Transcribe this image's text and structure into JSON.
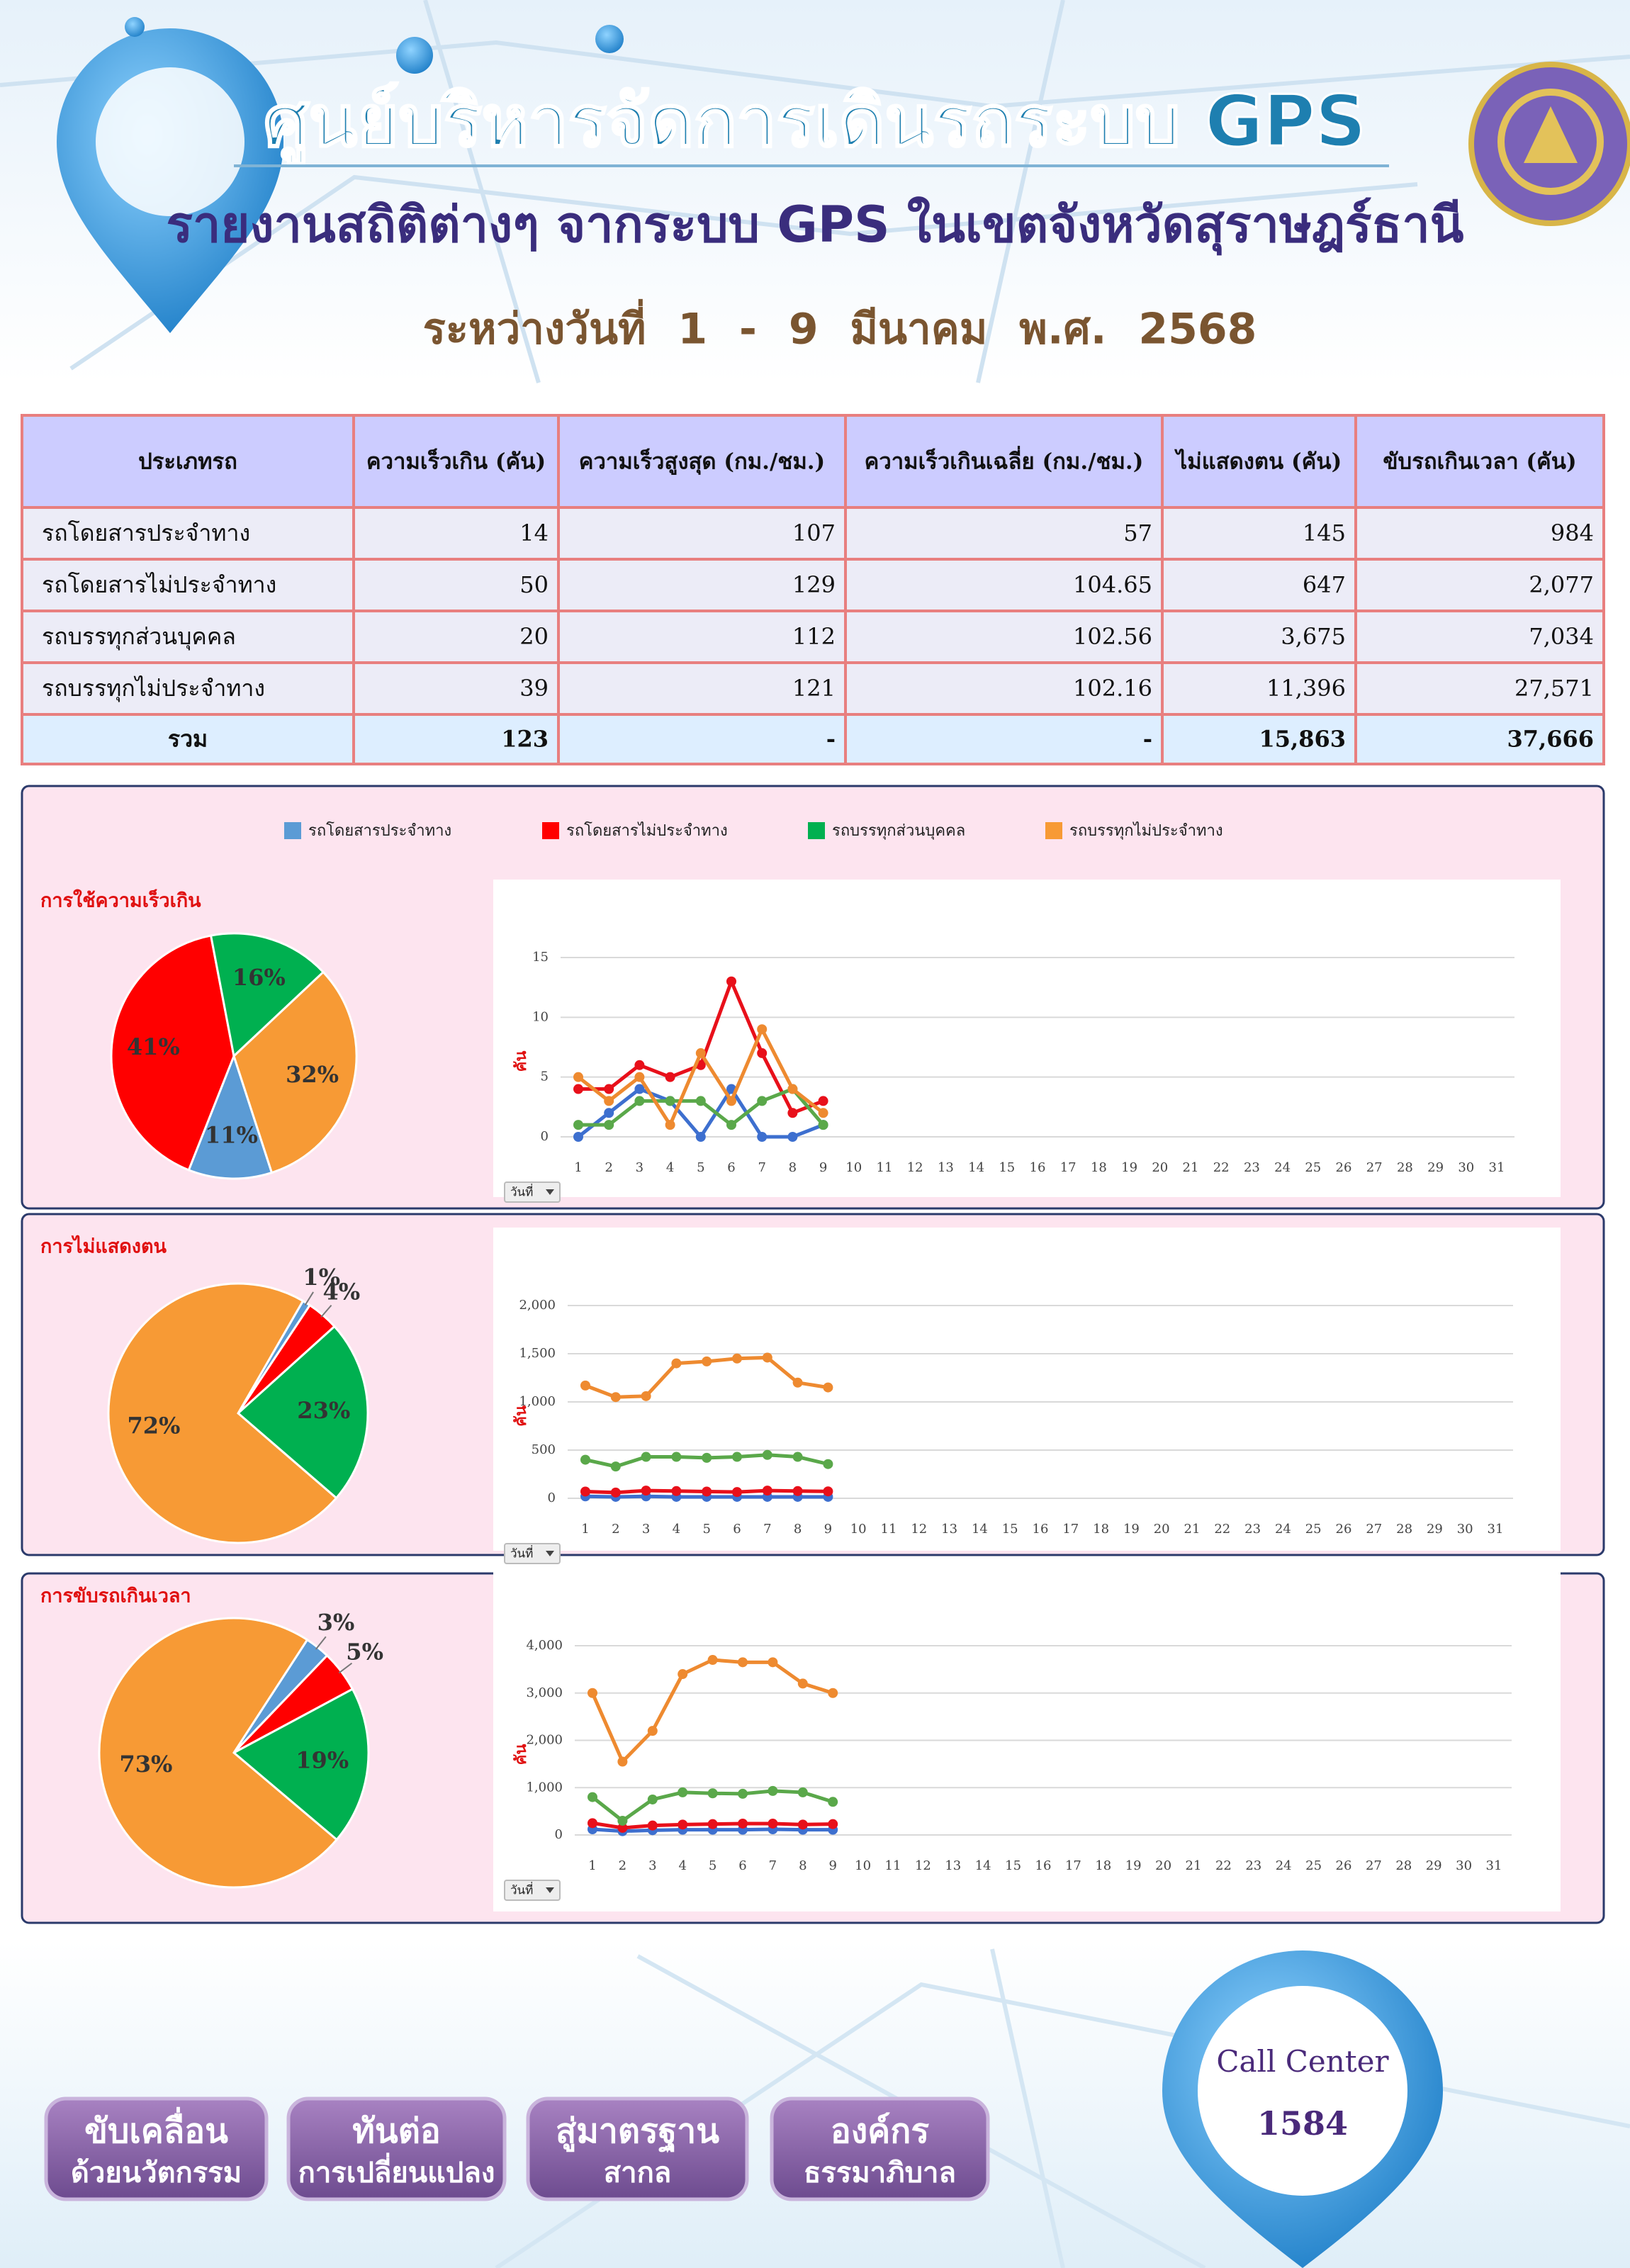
{
  "header": {
    "title": "ศูนย์บริหารจัดการเดินรถระบบ GPS",
    "subtitle": "รายงานสถิติต่างๆ จากระบบ GPS ในเขตจังหวัดสุราษฎร์ธานี",
    "date": "ระหว่างวันที่ 1 - 9 มีนาคม พ.ศ. 2568"
  },
  "table": {
    "headers": [
      "ประเภทรถ",
      "ความเร็วเกิน (คัน)",
      "ความเร็วสูงสุด (กม./ชม.)",
      "ความเร็วเกินเฉลี่ย (กม./ชม.)",
      "ไม่แสดงตน (คัน)",
      "ขับรถเกินเวลา (คัน)"
    ],
    "rows": [
      [
        "รถโดยสารประจำทาง",
        "14",
        "107",
        "57",
        "145",
        "984"
      ],
      [
        "รถโดยสารไม่ประจำทาง",
        "50",
        "129",
        "104.65",
        "647",
        "2,077"
      ],
      [
        "รถบรรทุกส่วนบุคคล",
        "20",
        "112",
        "102.56",
        "3,675",
        "7,034"
      ],
      [
        "รถบรรทุกไม่ประจำทาง",
        "39",
        "121",
        "102.16",
        "11,396",
        "27,571"
      ]
    ],
    "total": [
      "รวม",
      "123",
      "-",
      "-",
      "15,863",
      "37,666"
    ]
  },
  "chart_data": [
    {
      "type": "pie",
      "title": "การใช้ความเร็วเกิน",
      "values": [
        11,
        41,
        16,
        32
      ],
      "value_labels": [
        "11%",
        "41%",
        "16%",
        "32%"
      ],
      "colors": [
        "#5b9bd5",
        "#ff0000",
        "#00b050",
        "#f79a35"
      ]
    },
    {
      "type": "line",
      "ylabel": "คัน",
      "filter_label": "วันที่",
      "categories": [
        1,
        2,
        3,
        4,
        5,
        6,
        7,
        8,
        9,
        10,
        11,
        12,
        13,
        14,
        15,
        16,
        17,
        18,
        19,
        20,
        21,
        22,
        23,
        24,
        25,
        26,
        27,
        28,
        29,
        30,
        31
      ],
      "ylim": [
        0,
        15
      ],
      "yticks": [
        0,
        5,
        10,
        15
      ],
      "grid": true,
      "series": [
        {
          "name": "รถโดยสารประจำทาง",
          "color": "#3d6fcf",
          "values": [
            0,
            2,
            4,
            3,
            0,
            4,
            0,
            0,
            1,
            null,
            null,
            null,
            null,
            null,
            null,
            null,
            null,
            null,
            null,
            null,
            null,
            null,
            null,
            null,
            null,
            null,
            null,
            null,
            null,
            null,
            null
          ]
        },
        {
          "name": "รถโดยสารไม่ประจำทาง",
          "color": "#e8101a",
          "values": [
            4,
            4,
            6,
            5,
            6,
            13,
            7,
            2,
            3,
            null,
            null,
            null,
            null,
            null,
            null,
            null,
            null,
            null,
            null,
            null,
            null,
            null,
            null,
            null,
            null,
            null,
            null,
            null,
            null,
            null,
            null
          ]
        },
        {
          "name": "รถบรรทุกส่วนบุคคล",
          "color": "#5aa84a",
          "values": [
            1,
            1,
            3,
            3,
            3,
            1,
            3,
            4,
            1,
            null,
            null,
            null,
            null,
            null,
            null,
            null,
            null,
            null,
            null,
            null,
            null,
            null,
            null,
            null,
            null,
            null,
            null,
            null,
            null,
            null,
            null
          ]
        },
        {
          "name": "รถบรรทุกไม่ประจำทาง",
          "color": "#ee8a30",
          "values": [
            5,
            3,
            5,
            1,
            7,
            3,
            9,
            4,
            2,
            null,
            null,
            null,
            null,
            null,
            null,
            null,
            null,
            null,
            null,
            null,
            null,
            null,
            null,
            null,
            null,
            null,
            null,
            null,
            null,
            null,
            null
          ]
        }
      ]
    },
    {
      "type": "pie",
      "title": "การไม่แสดงตน",
      "values": [
        1,
        4,
        23,
        72
      ],
      "value_labels": [
        "1%",
        "4%",
        "23%",
        "72%"
      ],
      "colors": [
        "#5b9bd5",
        "#ff0000",
        "#00b050",
        "#f79a35"
      ]
    },
    {
      "type": "line",
      "ylabel": "คัน",
      "filter_label": "วันที่",
      "categories": [
        1,
        2,
        3,
        4,
        5,
        6,
        7,
        8,
        9,
        10,
        11,
        12,
        13,
        14,
        15,
        16,
        17,
        18,
        19,
        20,
        21,
        22,
        23,
        24,
        25,
        26,
        27,
        28,
        29,
        30,
        31
      ],
      "ylim": [
        0,
        2000
      ],
      "yticks": [
        0,
        500,
        {
          "value": 1000,
          "label": "1,000"
        },
        {
          "value": 1500,
          "label": "1,500"
        },
        {
          "value": 2000,
          "label": "2,000"
        }
      ],
      "grid": true,
      "series": [
        {
          "color": "#3d6fcf",
          "values": [
            20,
            15,
            20,
            15,
            15,
            15,
            15,
            15,
            15,
            null,
            null,
            null,
            null,
            null,
            null,
            null,
            null,
            null,
            null,
            null,
            null,
            null,
            null,
            null,
            null,
            null,
            null,
            null,
            null,
            null,
            null
          ]
        },
        {
          "color": "#e8101a",
          "values": [
            70,
            60,
            80,
            75,
            70,
            65,
            80,
            75,
            72,
            null,
            null,
            null,
            null,
            null,
            null,
            null,
            null,
            null,
            null,
            null,
            null,
            null,
            null,
            null,
            null,
            null,
            null,
            null,
            null,
            null,
            null
          ]
        },
        {
          "color": "#5aa84a",
          "values": [
            400,
            330,
            430,
            430,
            420,
            430,
            450,
            430,
            355,
            null,
            null,
            null,
            null,
            null,
            null,
            null,
            null,
            null,
            null,
            null,
            null,
            null,
            null,
            null,
            null,
            null,
            null,
            null,
            null,
            null,
            null
          ]
        },
        {
          "color": "#ee8a30",
          "values": [
            1170,
            1050,
            1060,
            1400,
            1420,
            1450,
            1460,
            1200,
            1150,
            null,
            null,
            null,
            null,
            null,
            null,
            null,
            null,
            null,
            null,
            null,
            null,
            null,
            null,
            null,
            null,
            null,
            null,
            null,
            null,
            null,
            null
          ]
        }
      ]
    },
    {
      "type": "pie",
      "title": "การขับรถเกินเวลา",
      "values": [
        3,
        5,
        19,
        73
      ],
      "value_labels": [
        "3%",
        "5%",
        "19%",
        "73%"
      ],
      "colors": [
        "#5b9bd5",
        "#ff0000",
        "#00b050",
        "#f79a35"
      ]
    },
    {
      "type": "line",
      "ylabel": "คัน",
      "filter_label": "วันที่",
      "categories": [
        1,
        2,
        3,
        4,
        5,
        6,
        7,
        8,
        9,
        10,
        11,
        12,
        13,
        14,
        15,
        16,
        17,
        18,
        19,
        20,
        21,
        22,
        23,
        24,
        25,
        26,
        27,
        28,
        29,
        30,
        31
      ],
      "ylim": [
        0,
        4000
      ],
      "yticks": [
        0,
        {
          "value": 1000,
          "label": "1,000"
        },
        {
          "value": 2000,
          "label": "2,000"
        },
        {
          "value": 3000,
          "label": "3,000"
        },
        {
          "value": 4000,
          "label": "4,000"
        }
      ],
      "grid": true,
      "series": [
        {
          "color": "#3d6fcf",
          "values": [
            120,
            80,
            100,
            110,
            110,
            110,
            120,
            110,
            110,
            null,
            null,
            null,
            null,
            null,
            null,
            null,
            null,
            null,
            null,
            null,
            null,
            null,
            null,
            null,
            null,
            null,
            null,
            null,
            null,
            null,
            null
          ]
        },
        {
          "color": "#e8101a",
          "values": [
            250,
            150,
            200,
            220,
            230,
            240,
            240,
            220,
            230,
            null,
            null,
            null,
            null,
            null,
            null,
            null,
            null,
            null,
            null,
            null,
            null,
            null,
            null,
            null,
            null,
            null,
            null,
            null,
            null,
            null,
            null
          ]
        },
        {
          "color": "#5aa84a",
          "values": [
            800,
            300,
            750,
            900,
            880,
            870,
            930,
            900,
            700,
            null,
            null,
            null,
            null,
            null,
            null,
            null,
            null,
            null,
            null,
            null,
            null,
            null,
            null,
            null,
            null,
            null,
            null,
            null,
            null,
            null,
            null
          ]
        },
        {
          "color": "#ee8a30",
          "values": [
            3000,
            1550,
            2200,
            3400,
            3700,
            3650,
            3650,
            3200,
            3000,
            null,
            null,
            null,
            null,
            null,
            null,
            null,
            null,
            null,
            null,
            null,
            null,
            null,
            null,
            null,
            null,
            null,
            null,
            null,
            null,
            null,
            null
          ]
        }
      ]
    }
  ],
  "footer": {
    "buttons": [
      [
        "ขับเคลื่อน",
        "ด้วยนวัตกรรม"
      ],
      [
        "ทันต่อ",
        "การเปลี่ยนแปลง"
      ],
      [
        "สู่มาตรฐาน",
        "สากล"
      ],
      [
        "องค์กร",
        "ธรรมาภิบาล"
      ]
    ],
    "call_center": {
      "label": "Call Center",
      "number": "1584"
    }
  }
}
